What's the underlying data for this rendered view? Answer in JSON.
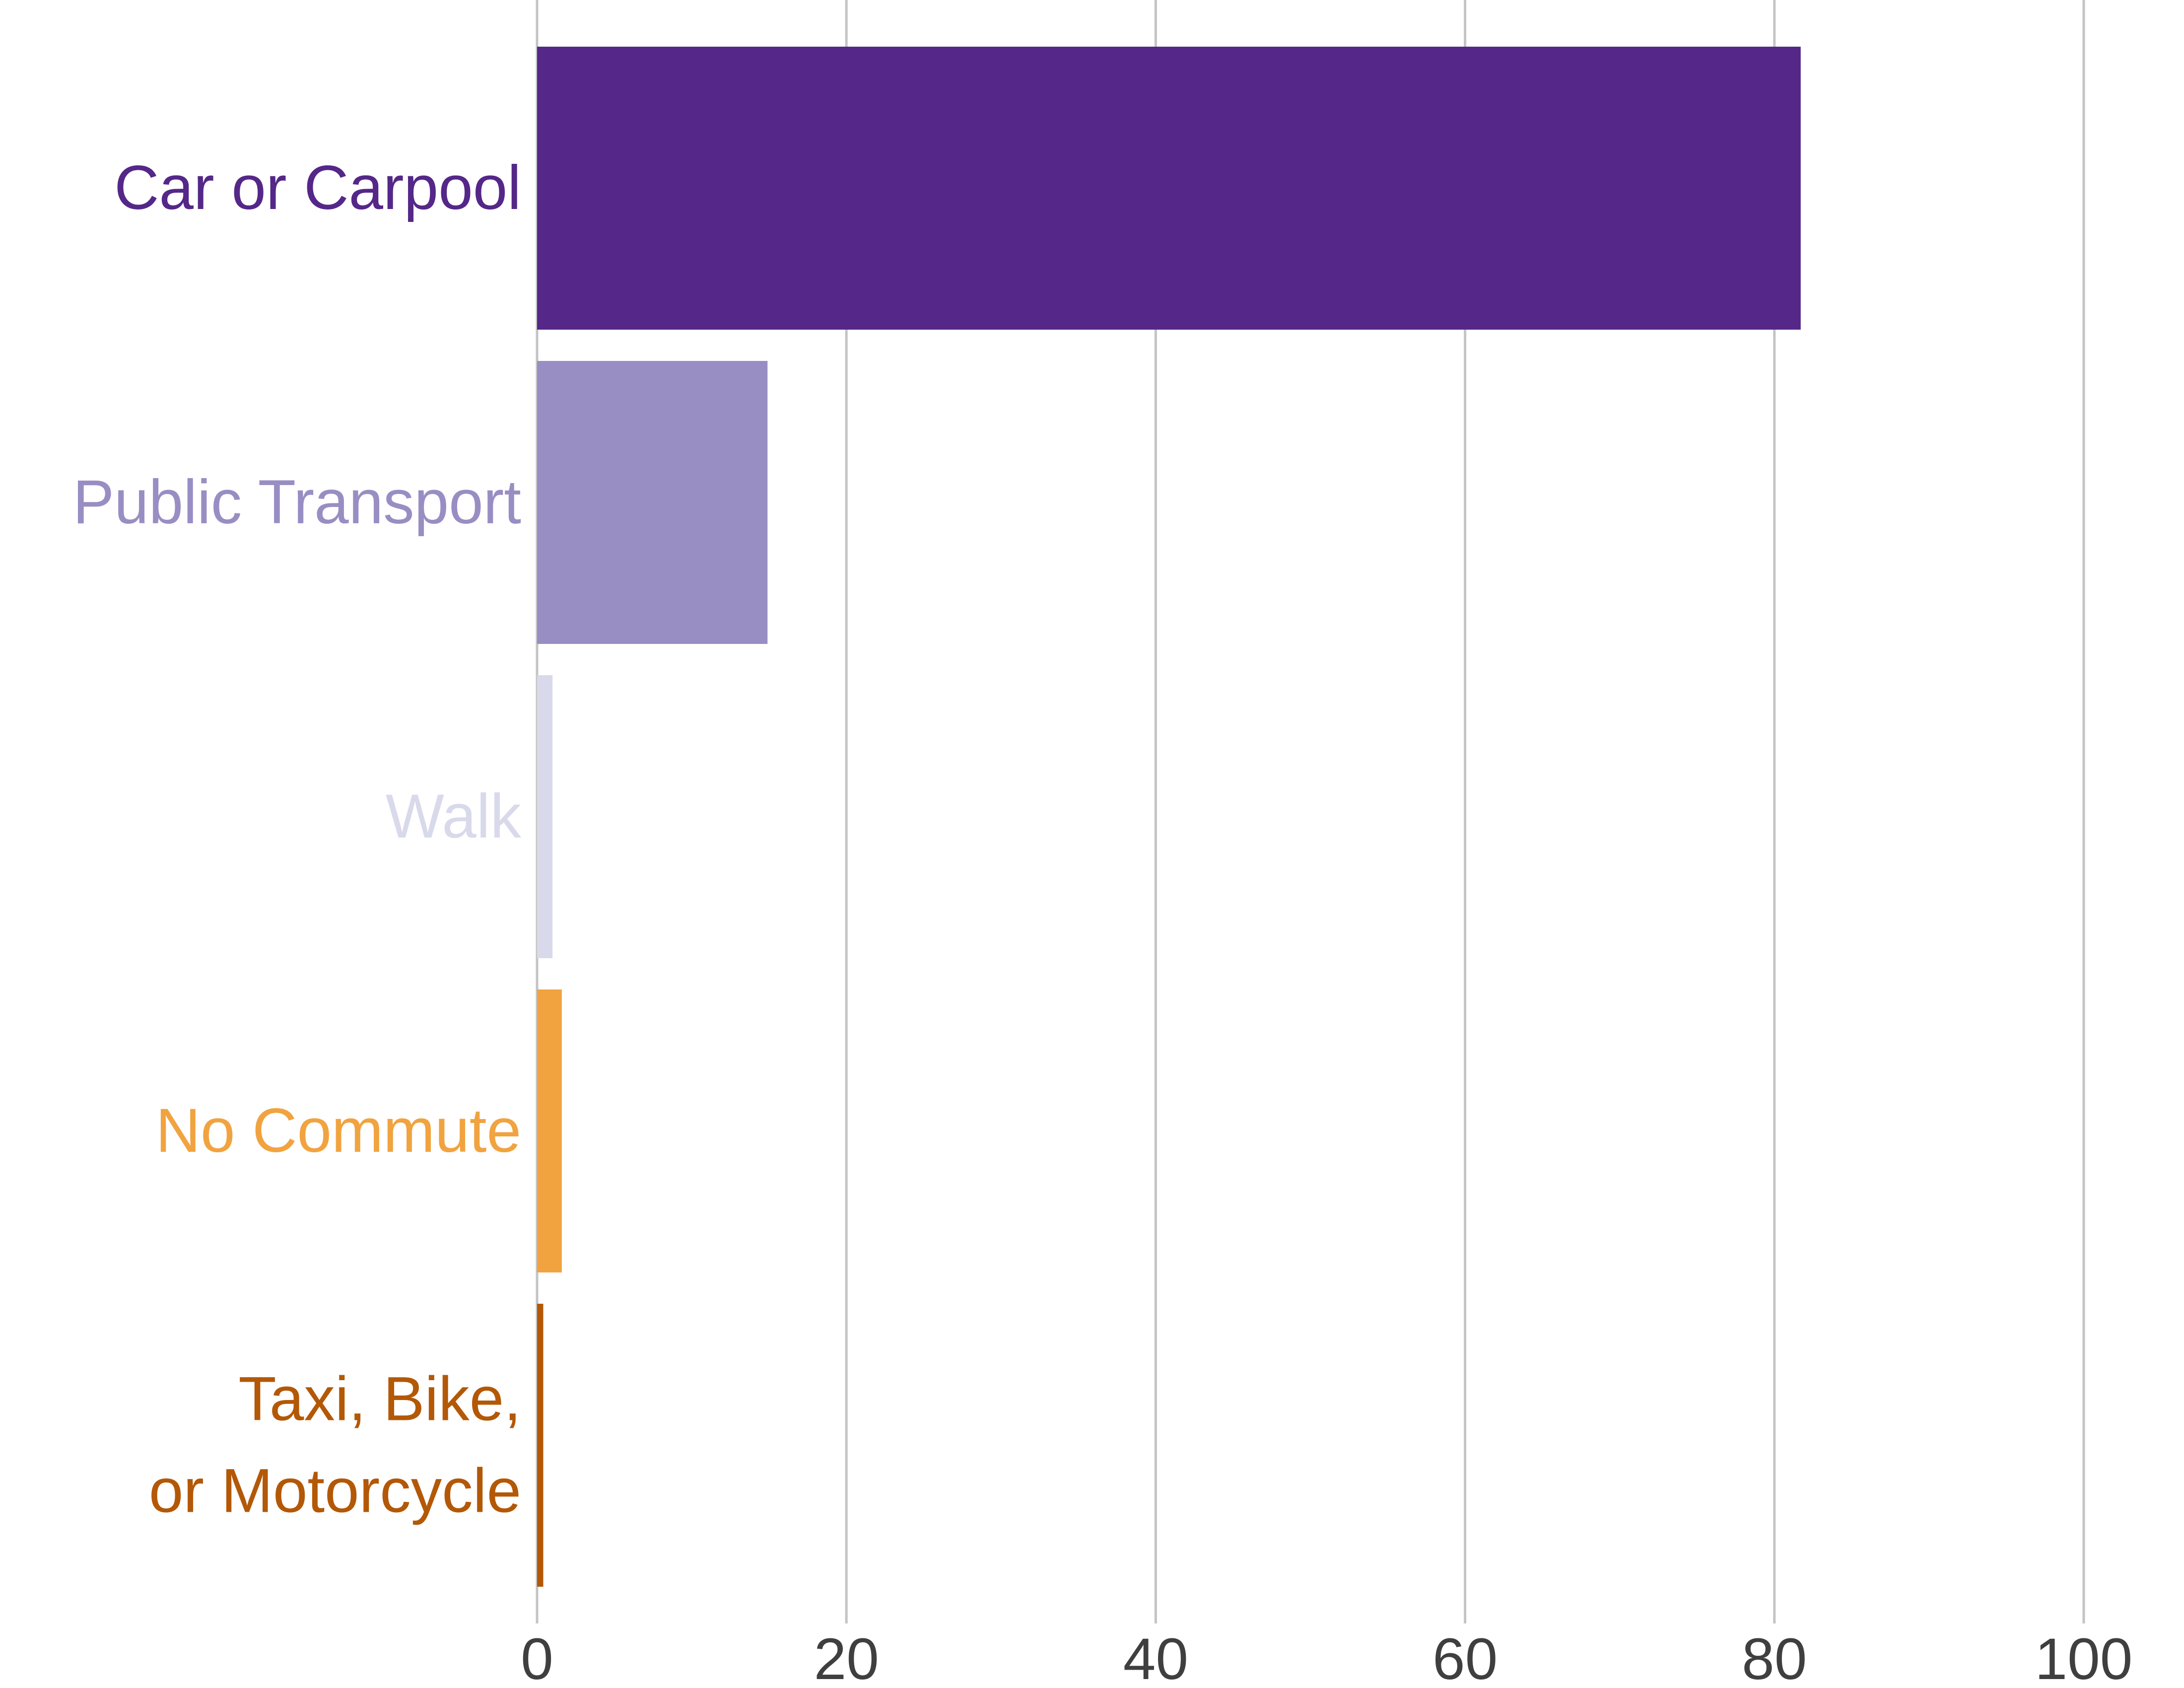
{
  "chart_data": {
    "type": "bar",
    "orientation": "horizontal",
    "categories": [
      "Car or Carpool",
      "Public Transport",
      "Walk",
      "No Commute",
      "Taxi, Bike,\nor Motorcycle"
    ],
    "values": [
      81.7,
      14.9,
      1.0,
      1.6,
      0.4
    ],
    "colors": [
      "#542788",
      "#998ec3",
      "#d8daeb",
      "#f1a340",
      "#b35806"
    ],
    "xlim": [
      0,
      100
    ],
    "xticks": [
      0,
      20,
      40,
      60,
      80,
      100
    ],
    "xtick_labels": [
      "0",
      "20",
      "40",
      "60",
      "80",
      "100"
    ],
    "grid": "vertical",
    "title": "",
    "xlabel": "",
    "ylabel": ""
  }
}
